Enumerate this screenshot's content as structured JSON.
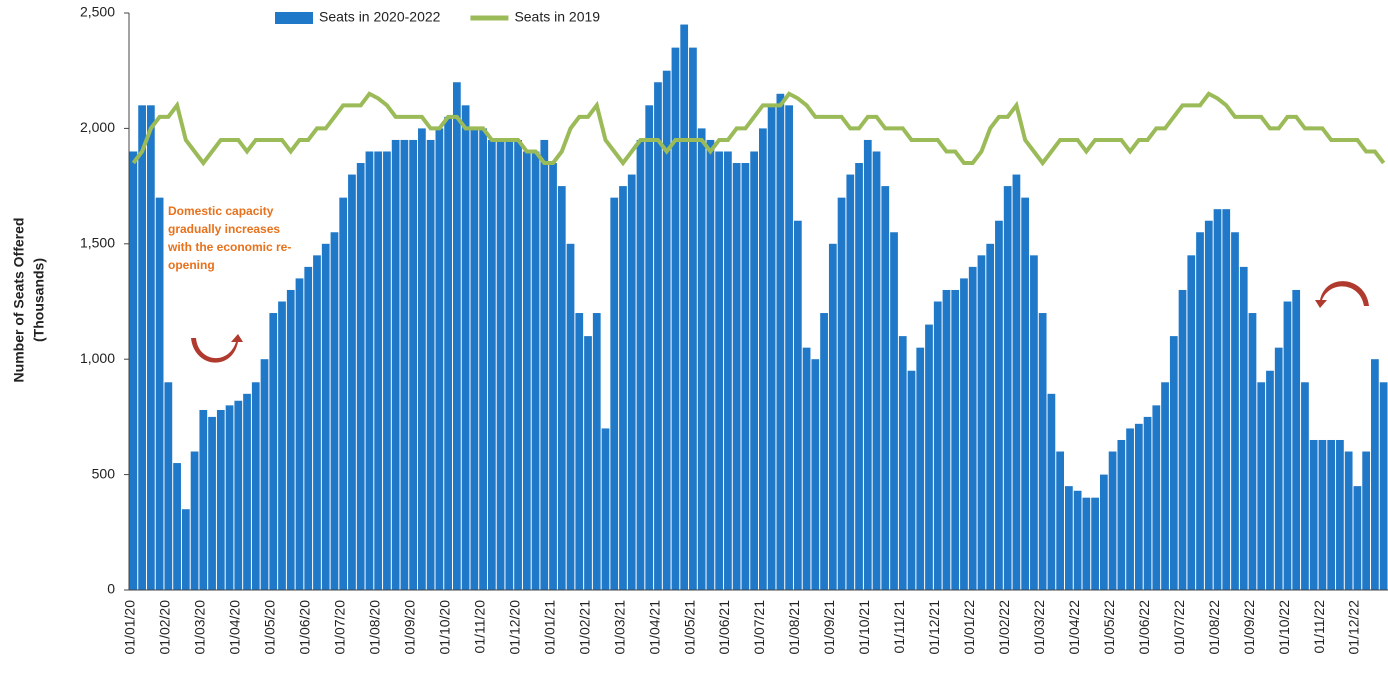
{
  "chart_data": {
    "type": "bar",
    "y_axis_label": [
      "Number of Seats Offered",
      "(Thousands)"
    ],
    "annotation": [
      "Domestic capacity",
      "gradually increases",
      "with the economic re-",
      "opening"
    ],
    "categories": [
      "01/01/20",
      null,
      null,
      null,
      "01/02/20",
      null,
      null,
      null,
      "01/03/20",
      null,
      null,
      null,
      "01/04/20",
      null,
      null,
      null,
      "01/05/20",
      null,
      null,
      null,
      "01/06/20",
      null,
      null,
      null,
      "01/07/20",
      null,
      null,
      null,
      "01/08/20",
      null,
      null,
      null,
      "01/09/20",
      null,
      null,
      null,
      "01/10/20",
      null,
      null,
      null,
      "01/11/20",
      null,
      null,
      null,
      "01/12/20",
      null,
      null,
      null,
      "01/01/21",
      null,
      null,
      null,
      "01/02/21",
      null,
      null,
      null,
      "01/03/21",
      null,
      null,
      null,
      "01/04/21",
      null,
      null,
      null,
      "01/05/21",
      null,
      null,
      null,
      "01/06/21",
      null,
      null,
      null,
      "01/07/21",
      null,
      null,
      null,
      "01/08/21",
      null,
      null,
      null,
      "01/09/21",
      null,
      null,
      null,
      "01/10/21",
      null,
      null,
      null,
      "01/11/21",
      null,
      null,
      null,
      "01/12/21",
      null,
      null,
      null,
      "01/01/22",
      null,
      null,
      null,
      "01/02/22",
      null,
      null,
      null,
      "01/03/22",
      null,
      null,
      null,
      "01/04/22",
      null,
      null,
      null,
      "01/05/22",
      null,
      null,
      null,
      "01/06/22",
      null,
      null,
      null,
      "01/07/22",
      null,
      null,
      null,
      "01/08/22",
      null,
      null,
      null,
      "01/09/22",
      null,
      null,
      null,
      "01/10/22",
      null,
      null,
      null,
      "01/11/22",
      null,
      null,
      null,
      "01/12/22",
      null,
      null,
      null
    ],
    "series": [
      {
        "name": "Seats in 2020-2022",
        "type": "bar",
        "color": "#1f78c8",
        "values": [
          1900,
          2100,
          2100,
          1700,
          900,
          550,
          350,
          600,
          780,
          750,
          780,
          800,
          820,
          850,
          900,
          1000,
          1200,
          1250,
          1300,
          1350,
          1400,
          1450,
          1500,
          1550,
          1700,
          1800,
          1850,
          1900,
          1900,
          1900,
          1950,
          1950,
          1950,
          2000,
          1950,
          2000,
          2050,
          2200,
          2100,
          2000,
          2000,
          1950,
          1950,
          1950,
          1950,
          1900,
          1900,
          1950,
          1850,
          1750,
          1500,
          1200,
          1100,
          1200,
          700,
          1700,
          1750,
          1800,
          1950,
          2100,
          2200,
          2250,
          2350,
          2450,
          2350,
          2000,
          1950,
          1900,
          1900,
          1850,
          1850,
          1900,
          2000,
          2100,
          2150,
          2100,
          1600,
          1050,
          1000,
          1200,
          1500,
          1700,
          1800,
          1850,
          1950,
          1900,
          1750,
          1550,
          1100,
          950,
          1050,
          1150,
          1250,
          1300,
          1300,
          1350,
          1400,
          1450,
          1500,
          1600,
          1750,
          1800,
          1700,
          1450,
          1200,
          850,
          600,
          450,
          430,
          400,
          400,
          500,
          600,
          650,
          700,
          720,
          750,
          800,
          900,
          1100,
          1300,
          1450,
          1550,
          1600,
          1650,
          1650,
          1550,
          1400,
          1200,
          900,
          950,
          1050,
          1250,
          1300,
          900,
          650,
          650,
          650,
          650,
          600,
          450,
          600,
          1000,
          900
        ]
      },
      {
        "name": "Seats in 2019",
        "type": "line",
        "color": "#9bbb59",
        "values": [
          1850,
          1900,
          2000,
          2050,
          2050,
          2100,
          1950,
          1900,
          1850,
          1900,
          1950,
          1950,
          1950,
          1900,
          1950,
          1950,
          1950,
          1950,
          1900,
          1950,
          1950,
          2000,
          2000,
          2050,
          2100,
          2100,
          2100,
          2150,
          2130,
          2100,
          2050,
          2050,
          2050,
          2050,
          2000,
          2000,
          2050,
          2050,
          2000,
          2000,
          2000,
          1950,
          1950,
          1950,
          1950,
          1900,
          1900,
          1850,
          1850,
          1900,
          2000,
          2050,
          2050,
          2100,
          1950,
          1900,
          1850,
          1900,
          1950,
          1950,
          1950,
          1900,
          1950,
          1950,
          1950,
          1950,
          1900,
          1950,
          1950,
          2000,
          2000,
          2050,
          2100,
          2100,
          2100,
          2150,
          2130,
          2100,
          2050,
          2050,
          2050,
          2050,
          2000,
          2000,
          2050,
          2050,
          2000,
          2000,
          2000,
          1950,
          1950,
          1950,
          1950,
          1900,
          1900,
          1850,
          1850,
          1900,
          2000,
          2050,
          2050,
          2100,
          1950,
          1900,
          1850,
          1900,
          1950,
          1950,
          1950,
          1900,
          1950,
          1950,
          1950,
          1950,
          1900,
          1950,
          1950,
          2000,
          2000,
          2050,
          2100,
          2100,
          2100,
          2150,
          2130,
          2100,
          2050,
          2050,
          2050,
          2050,
          2000,
          2000,
          2050,
          2050,
          2000,
          2000,
          2000,
          1950,
          1950,
          1950,
          1950,
          1900,
          1900,
          1850
        ]
      }
    ],
    "ylim": [
      0,
      2500
    ],
    "yticks": [
      0,
      500,
      {
        "value": 1000,
        "label": "1,000"
      },
      {
        "value": 1500,
        "label": "1,500"
      },
      {
        "value": 2000,
        "label": "2,000"
      },
      {
        "value": 2500,
        "label": "2,500"
      }
    ],
    "legend": "top"
  }
}
